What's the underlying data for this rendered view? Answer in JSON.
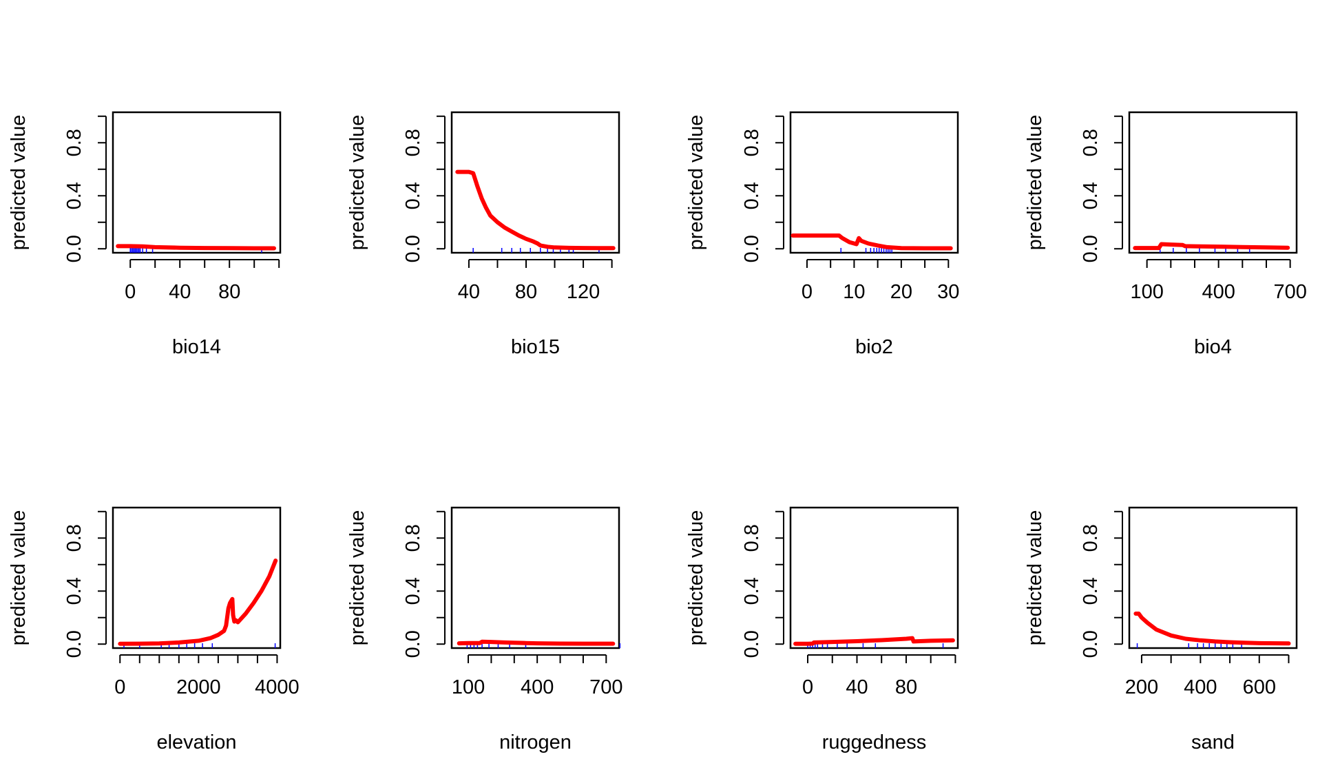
{
  "chart_data": [
    {
      "type": "line",
      "xlabel": "bio14",
      "ylabel": "predicted value",
      "xlim": [
        -14,
        121
      ],
      "ylim": [
        -0.03,
        1.03
      ],
      "xticks": [
        0,
        20,
        40,
        60,
        80,
        100,
        120
      ],
      "xtick_labels": [
        "0",
        "",
        "40",
        "",
        "80",
        "",
        ""
      ],
      "yticks": [
        0,
        0.2,
        0.4,
        0.6,
        0.8,
        1.0
      ],
      "ytick_labels": [
        "0.0",
        "",
        "0.4",
        "",
        "0.8",
        ""
      ],
      "grid": false,
      "series": [
        {
          "x": [
            -10,
            0,
            10,
            20,
            40,
            60,
            80,
            100,
            116
          ],
          "y": [
            0.02,
            0.02,
            0.018,
            0.012,
            0.008,
            0.006,
            0.005,
            0.004,
            0.004
          ]
        }
      ],
      "rug": [
        0,
        1,
        2,
        3,
        4,
        5,
        6,
        7,
        8,
        10,
        13,
        18,
        106
      ]
    },
    {
      "type": "line",
      "xlabel": "bio15",
      "ylabel": "predicted value",
      "xlim": [
        28,
        145
      ],
      "ylim": [
        -0.03,
        1.03
      ],
      "xticks": [
        40,
        60,
        80,
        100,
        120,
        140
      ],
      "xtick_labels": [
        "40",
        "",
        "80",
        "",
        "120",
        ""
      ],
      "yticks": [
        0,
        0.2,
        0.4,
        0.6,
        0.8,
        1.0
      ],
      "ytick_labels": [
        "0.0",
        "",
        "0.4",
        "",
        "0.8",
        ""
      ],
      "grid": false,
      "series": [
        {
          "x": [
            32,
            40,
            43,
            46,
            49,
            52,
            55,
            60,
            65,
            70,
            75,
            80,
            85,
            88,
            90,
            95,
            100,
            110,
            120,
            130,
            141
          ],
          "y": [
            0.58,
            0.58,
            0.57,
            0.47,
            0.38,
            0.31,
            0.25,
            0.2,
            0.16,
            0.13,
            0.1,
            0.075,
            0.055,
            0.04,
            0.025,
            0.015,
            0.01,
            0.007,
            0.006,
            0.005,
            0.005
          ]
        }
      ],
      "rug": [
        43,
        63,
        70,
        76,
        83,
        90,
        95,
        99,
        104,
        110,
        113,
        131
      ]
    },
    {
      "type": "line",
      "xlabel": "bio2",
      "ylabel": "predicted value",
      "xlim": [
        -3.5,
        32
      ],
      "ylim": [
        -0.03,
        1.03
      ],
      "xticks": [
        0,
        5,
        10,
        15,
        20,
        25,
        30
      ],
      "xtick_labels": [
        "0",
        "",
        "10",
        "",
        "20",
        "",
        "30"
      ],
      "yticks": [
        0,
        0.2,
        0.4,
        0.6,
        0.8,
        1.0
      ],
      "ytick_labels": [
        "0.0",
        "",
        "0.4",
        "",
        "0.8",
        ""
      ],
      "grid": false,
      "series": [
        {
          "x": [
            -3,
            0,
            3,
            6.8,
            7.5,
            9,
            10.5,
            11,
            11.5,
            13,
            15,
            17,
            20,
            25,
            30.5
          ],
          "y": [
            0.1,
            0.1,
            0.1,
            0.1,
            0.08,
            0.05,
            0.035,
            0.08,
            0.06,
            0.04,
            0.025,
            0.012,
            0.005,
            0.004,
            0.004
          ]
        }
      ],
      "rug": [
        7.2,
        12.5,
        13.5,
        14.2,
        14.8,
        15.3,
        15.8,
        16.3,
        16.8,
        17.2,
        17.6,
        18
      ]
    },
    {
      "type": "line",
      "xlabel": "bio4",
      "ylabel": "predicted value",
      "xlim": [
        26,
        727
      ],
      "ylim": [
        -0.03,
        1.03
      ],
      "xticks": [
        100,
        200,
        300,
        400,
        500,
        600,
        700
      ],
      "xtick_labels": [
        "100",
        "",
        "",
        "400",
        "",
        "",
        "700"
      ],
      "yticks": [
        0,
        0.2,
        0.4,
        0.6,
        0.8,
        1.0
      ],
      "ytick_labels": [
        "0.0",
        "",
        "0.4",
        "",
        "0.8",
        ""
      ],
      "grid": false,
      "series": [
        {
          "x": [
            50,
            100,
            150,
            160,
            200,
            250,
            260,
            300,
            400,
            500,
            600,
            690
          ],
          "y": [
            0.006,
            0.006,
            0.006,
            0.035,
            0.032,
            0.028,
            0.02,
            0.019,
            0.016,
            0.013,
            0.01,
            0.008
          ]
        }
      ],
      "rug": [
        155,
        210,
        265,
        320,
        385,
        430,
        480,
        530
      ]
    },
    {
      "type": "line",
      "xlabel": "elevation",
      "ylabel": "predicted value",
      "xlim": [
        -180,
        4080
      ],
      "ylim": [
        -0.03,
        1.03
      ],
      "xticks": [
        0,
        500,
        1000,
        1500,
        2000,
        2500,
        3000,
        3500,
        4000
      ],
      "xtick_labels": [
        "0",
        "",
        "",
        "",
        "2000",
        "",
        "",
        "",
        "4000"
      ],
      "yticks": [
        0,
        0.2,
        0.4,
        0.6,
        0.8,
        1.0
      ],
      "ytick_labels": [
        "0.0",
        "",
        "0.4",
        "",
        "0.8",
        ""
      ],
      "grid": false,
      "series": [
        {
          "x": [
            0,
            500,
            1000,
            1500,
            2000,
            2300,
            2500,
            2650,
            2700,
            2760,
            2800,
            2860,
            2880,
            2910,
            2950,
            3000,
            3200,
            3400,
            3600,
            3800,
            3960
          ],
          "y": [
            0.002,
            0.003,
            0.005,
            0.012,
            0.025,
            0.045,
            0.07,
            0.1,
            0.14,
            0.27,
            0.31,
            0.34,
            0.22,
            0.17,
            0.18,
            0.165,
            0.23,
            0.31,
            0.4,
            0.51,
            0.63
          ]
        }
      ],
      "rug": [
        100,
        500,
        1050,
        1250,
        1500,
        1700,
        1900,
        2100,
        2350,
        3950
      ]
    },
    {
      "type": "line",
      "xlabel": "nitrogen",
      "ylabel": "predicted value",
      "xlim": [
        28,
        756
      ],
      "ylim": [
        -0.03,
        1.03
      ],
      "xticks": [
        100,
        200,
        300,
        400,
        500,
        600,
        700
      ],
      "xtick_labels": [
        "100",
        "",
        "",
        "400",
        "",
        "",
        "700"
      ],
      "yticks": [
        0,
        0.2,
        0.4,
        0.6,
        0.8,
        1.0
      ],
      "ytick_labels": [
        "0.0",
        "",
        "0.4",
        "",
        "0.8",
        ""
      ],
      "grid": false,
      "series": [
        {
          "x": [
            60,
            100,
            150,
            160,
            200,
            250,
            300,
            350,
            400,
            500,
            600,
            730
          ],
          "y": [
            0.006,
            0.008,
            0.008,
            0.018,
            0.016,
            0.013,
            0.01,
            0.008,
            0.006,
            0.004,
            0.003,
            0.003
          ]
        }
      ],
      "rug": [
        95,
        110,
        125,
        140,
        160,
        190,
        230,
        280,
        350,
        760
      ]
    },
    {
      "type": "line",
      "xlabel": "ruggedness",
      "ylabel": "predicted value",
      "xlim": [
        -14,
        122
      ],
      "ylim": [
        -0.03,
        1.03
      ],
      "xticks": [
        0,
        20,
        40,
        60,
        80,
        100,
        120
      ],
      "xtick_labels": [
        "0",
        "",
        "40",
        "",
        "80",
        "",
        ""
      ],
      "yticks": [
        0,
        0.2,
        0.4,
        0.6,
        0.8,
        1.0
      ],
      "ytick_labels": [
        "0.0",
        "",
        "0.4",
        "",
        "0.8",
        ""
      ],
      "grid": false,
      "series": [
        {
          "x": [
            -10,
            0,
            4,
            5,
            20,
            40,
            60,
            80,
            85,
            86,
            100,
            118
          ],
          "y": [
            0.002,
            0.002,
            0.004,
            0.012,
            0.016,
            0.022,
            0.03,
            0.04,
            0.045,
            0.02,
            0.025,
            0.028
          ]
        }
      ],
      "rug": [
        0,
        2,
        4,
        6,
        8,
        12,
        16,
        24,
        32,
        45,
        55,
        110
      ]
    },
    {
      "type": "line",
      "xlabel": "sand",
      "ylabel": "predicted value",
      "xlim": [
        158,
        727
      ],
      "ylim": [
        -0.03,
        1.03
      ],
      "xticks": [
        200,
        300,
        400,
        500,
        600,
        700
      ],
      "xtick_labels": [
        "200",
        "",
        "400",
        "",
        "600",
        ""
      ],
      "yticks": [
        0,
        0.2,
        0.4,
        0.6,
        0.8,
        1.0
      ],
      "ytick_labels": [
        "0.0",
        "",
        "0.4",
        "",
        "0.8",
        ""
      ],
      "grid": false,
      "series": [
        {
          "x": [
            180,
            190,
            200,
            220,
            250,
            300,
            350,
            400,
            450,
            500,
            550,
            600,
            700
          ],
          "y": [
            0.23,
            0.23,
            0.2,
            0.16,
            0.11,
            0.065,
            0.04,
            0.028,
            0.02,
            0.014,
            0.01,
            0.007,
            0.005
          ]
        }
      ],
      "rug": [
        185,
        360,
        390,
        410,
        430,
        450,
        470,
        490,
        510,
        540
      ]
    }
  ]
}
